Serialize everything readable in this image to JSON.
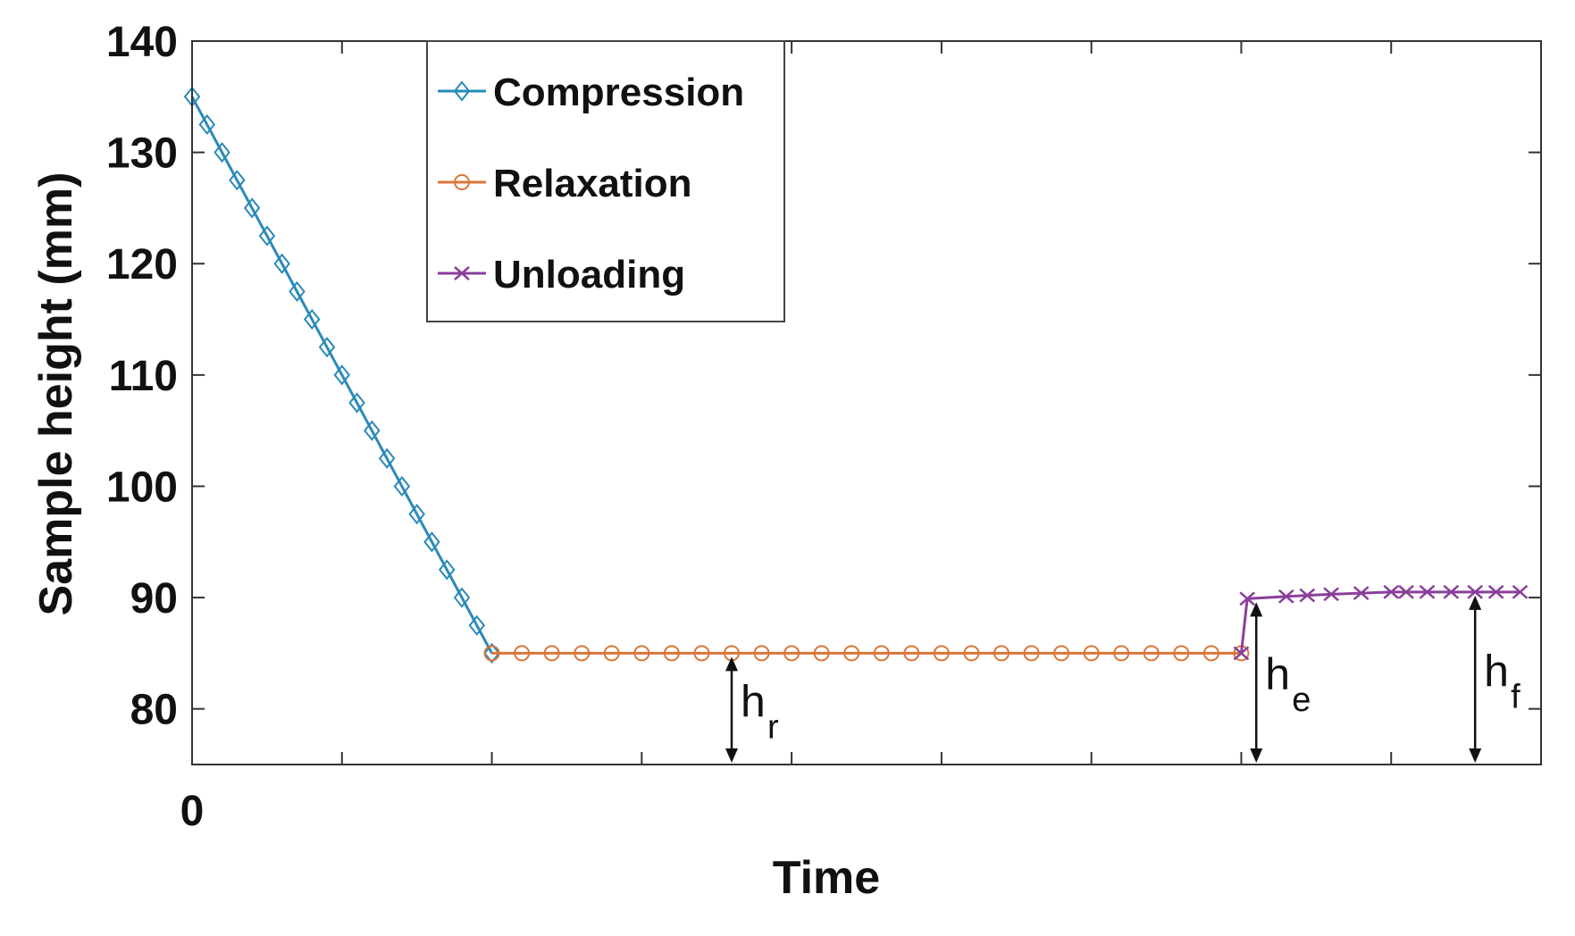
{
  "chart_data": {
    "type": "line",
    "title": "",
    "xlabel": "Time",
    "ylabel": "Sample height (mm)",
    "ylim": [
      75,
      140
    ],
    "xlim": [
      0,
      45
    ],
    "yticks": [
      80,
      90,
      100,
      110,
      120,
      130,
      140
    ],
    "xtick_labels": [
      "0"
    ],
    "grid": false,
    "legend_position": "top-left",
    "series": [
      {
        "name": "Compression",
        "color": "#2a8ab8",
        "marker": "diamond",
        "x": [
          0,
          0.5,
          1,
          1.5,
          2,
          2.5,
          3,
          3.5,
          4,
          4.5,
          5,
          5.5,
          6,
          6.5,
          7,
          7.5,
          8,
          8.5,
          9,
          9.5,
          10
        ],
        "y": [
          135,
          132.5,
          130,
          127.5,
          125,
          122.5,
          120,
          117.5,
          115,
          112.5,
          110,
          107.5,
          105,
          102.5,
          100,
          97.5,
          95,
          92.5,
          90,
          87.5,
          85
        ]
      },
      {
        "name": "Relaxation",
        "color": "#d9763a",
        "marker": "circle",
        "x": [
          10,
          11,
          12,
          13,
          14,
          15,
          16,
          17,
          18,
          19,
          20,
          21,
          22,
          23,
          24,
          25,
          26,
          27,
          28,
          29,
          30,
          31,
          32,
          33,
          34,
          35
        ],
        "y": [
          85,
          85,
          85,
          85,
          85,
          85,
          85,
          85,
          85,
          85,
          85,
          85,
          85,
          85,
          85,
          85,
          85,
          85,
          85,
          85,
          85,
          85,
          85,
          85,
          85,
          85
        ]
      },
      {
        "name": "Unloading",
        "color": "#8a3f9a",
        "marker": "x",
        "x": [
          35,
          35.2,
          36.5,
          37.2,
          38,
          39,
          40,
          40.5,
          41.2,
          42,
          42.8,
          43.5,
          44.3
        ],
        "y": [
          85,
          89.9,
          90.1,
          90.2,
          90.3,
          90.4,
          90.5,
          90.5,
          90.5,
          90.5,
          90.5,
          90.5,
          90.5
        ]
      }
    ],
    "annotations": [
      {
        "main": "h",
        "sub": "r",
        "x": 18,
        "y_from": 75,
        "y_to": 85
      },
      {
        "main": "h",
        "sub": "e",
        "x": 35.5,
        "y_from": 75,
        "y_to": 89.9
      },
      {
        "main": "h",
        "sub": "f",
        "x": 42.8,
        "y_from": 75,
        "y_to": 90.5
      }
    ]
  }
}
